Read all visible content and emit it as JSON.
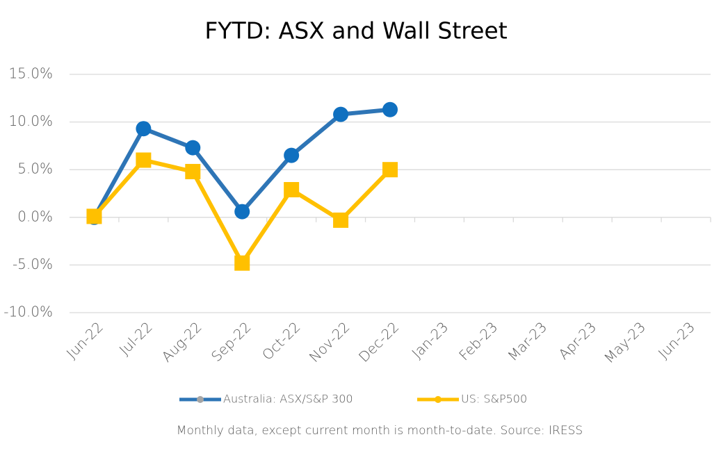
{
  "chart_data": {
    "type": "line",
    "title": "FYTD: ASX and Wall Street",
    "footnote": "Monthly data, except current month is month-to-date.  Source: IRESS",
    "categories": [
      "Jun-22",
      "Jul-22",
      "Aug-22",
      "Sep-22",
      "Oct-22",
      "Nov-22",
      "Dec-22",
      "Jan-23",
      "Feb-23",
      "Mar-23",
      "Apr-23",
      "May-23",
      "Jun-23"
    ],
    "series": [
      {
        "name": "Australia: ASX/S&P 300",
        "color": "#2e75b6",
        "marker_color": "#1070c0",
        "marker": "circle",
        "values": [
          0,
          9.3,
          7.3,
          0.6,
          6.5,
          10.8,
          11.3,
          null,
          null,
          null,
          null,
          null,
          null
        ]
      },
      {
        "name": "US: S&P500",
        "color": "#ffc000",
        "marker_color": "#ffc000",
        "marker": "square",
        "values": [
          0.1,
          6.0,
          4.8,
          -4.8,
          2.9,
          -0.3,
          5.0,
          null,
          null,
          null,
          null,
          null,
          null
        ]
      }
    ],
    "ylim": [
      -10,
      15
    ],
    "yticks": [
      {
        "value": -10,
        "label": "-10.0%"
      },
      {
        "value": -5,
        "label": "-5.0%"
      },
      {
        "value": 0,
        "label": "0.0%"
      },
      {
        "value": 5,
        "label": "5.0%"
      },
      {
        "value": 10,
        "label": "10.0%"
      },
      {
        "value": 15,
        "label": "15.0%"
      }
    ],
    "grid": true,
    "legend": "bottom"
  }
}
